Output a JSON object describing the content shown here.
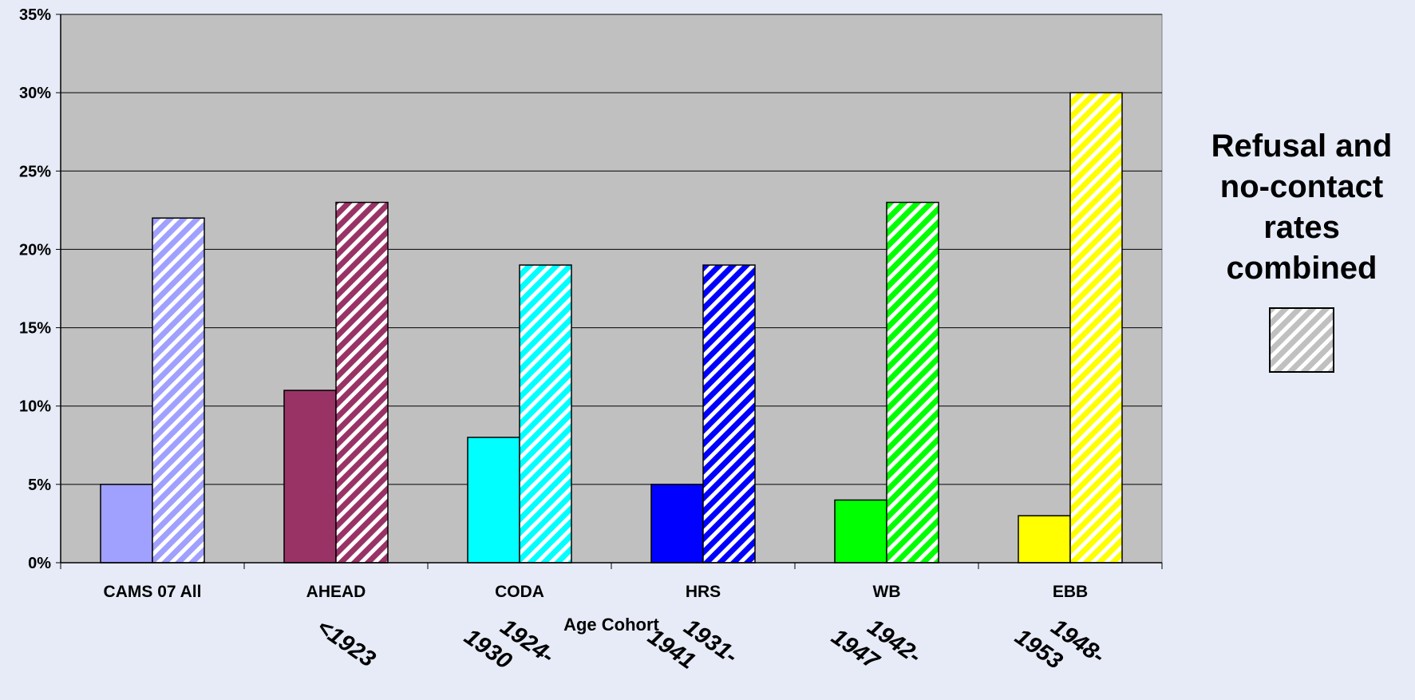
{
  "chart_data": {
    "type": "bar",
    "categories": [
      "CAMS 07 All",
      "AHEAD",
      "CODA",
      "HRS",
      "WB",
      "EBB"
    ],
    "cohort_labels": [
      "",
      "<1923",
      "1924-\n1930",
      "1931-\n1941",
      "1942-\n1947",
      "1948-\n1953"
    ],
    "series": [
      {
        "values": [
          5,
          11,
          8,
          5,
          4,
          3
        ],
        "pattern": "solid"
      },
      {
        "values": [
          22,
          23,
          19,
          19,
          23,
          30
        ],
        "pattern": "hatched"
      }
    ],
    "category_colors": [
      "#a0a0ff",
      "#993366",
      "#00ffff",
      "#0000ff",
      "#00ff00",
      "#ffff00"
    ],
    "xlabel": "Age Cohort",
    "ylabel": "",
    "ylim": [
      0,
      35
    ],
    "yticks": [
      0,
      5,
      10,
      15,
      20,
      25,
      30,
      35
    ],
    "ytick_suffix": "%",
    "grid": true,
    "plot_background": "#c0c0c0",
    "legend": {
      "title": "Refusal and no-contact rates combined",
      "title_lines": [
        "Refusal and",
        "no-contact",
        "rates",
        "combined"
      ],
      "swatch_color": "#c0c0c0",
      "placement": "right"
    }
  }
}
